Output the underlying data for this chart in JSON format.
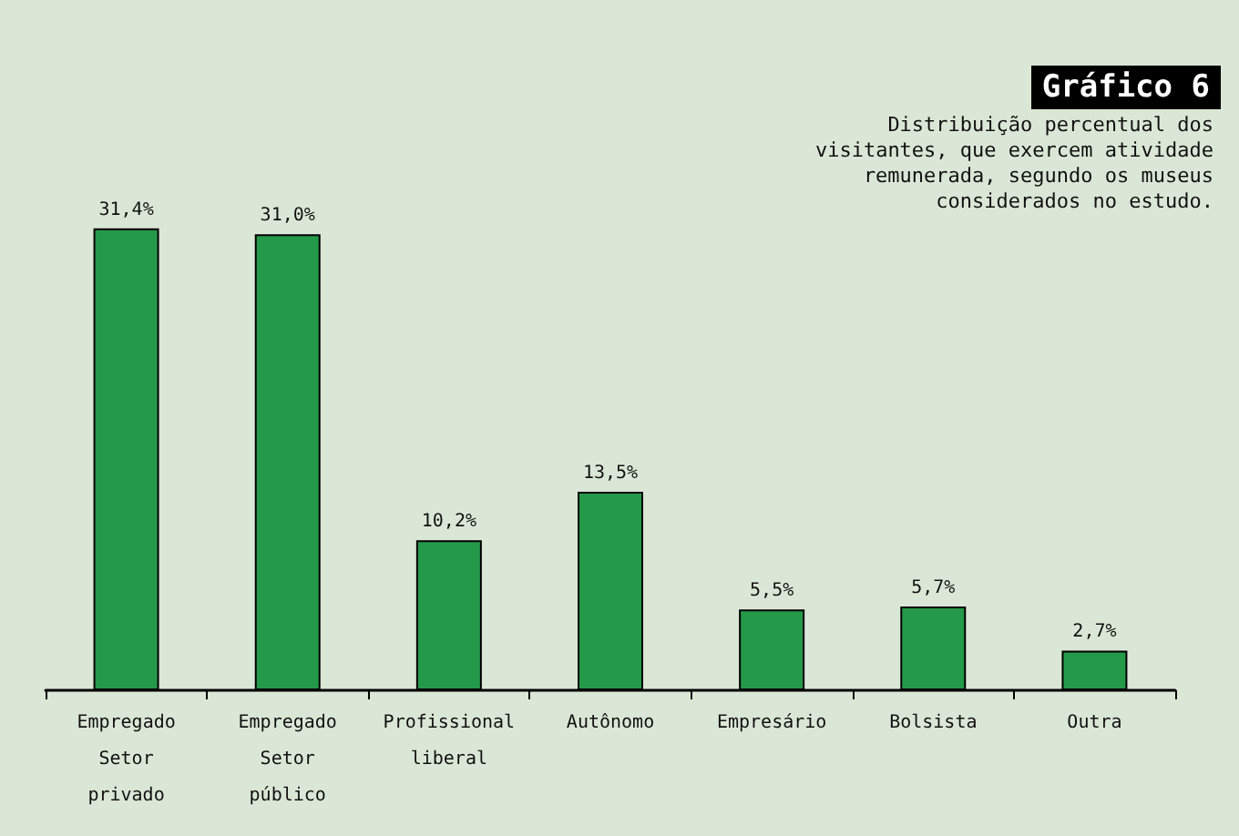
{
  "chart_data": {
    "type": "bar",
    "title": "Gráfico 6",
    "subtitle": "Distribuição percentual dos\nvisitantes, que exercem atividade\nremunerada, segundo os museus\nconsiderados no estudo.",
    "categories": [
      "Empregado\nSetor\nprivado",
      "Empregado\nSetor\npúblico",
      "Profissional\nliberal",
      "Autônomo",
      "Empresário",
      "Bolsista",
      "Outra"
    ],
    "values": [
      31.4,
      31.0,
      10.2,
      13.5,
      5.5,
      5.7,
      2.7
    ],
    "value_labels": [
      "31,4%",
      "31,0%",
      "10,2%",
      "13,5%",
      "5,5%",
      "5,7%",
      "2,7%"
    ],
    "color": "#25994a"
  }
}
